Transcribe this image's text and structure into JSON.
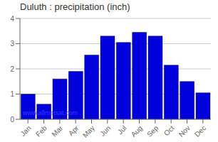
{
  "chart_data": {
    "type": "bar",
    "title": "Duluth : precipitation (inch)",
    "categories": [
      "Jan",
      "Feb",
      "Mar",
      "Apr",
      "May",
      "Jun",
      "Jul",
      "Aug",
      "Sep",
      "Oct",
      "Nov",
      "Dec"
    ],
    "values": [
      1.0,
      0.6,
      1.6,
      1.9,
      2.55,
      3.3,
      3.05,
      3.45,
      3.3,
      2.15,
      1.5,
      1.05
    ],
    "color": "#0000DD",
    "ylim": [
      0,
      4
    ],
    "yticks": [
      0,
      1,
      2,
      3,
      4
    ],
    "grid": true,
    "annotations": [
      "www.allmetsat.com"
    ]
  }
}
